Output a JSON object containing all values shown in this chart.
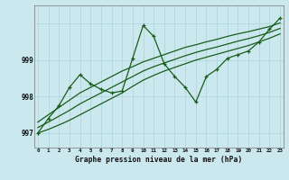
{
  "title": "Graphe pression niveau de la mer (hPa)",
  "bg_color": "#cce8ef",
  "grid_color": "#aad4dc",
  "line_color": "#1a5c1a",
  "x_hours": [
    0,
    1,
    2,
    3,
    4,
    5,
    6,
    7,
    8,
    9,
    10,
    11,
    12,
    13,
    14,
    15,
    16,
    17,
    18,
    19,
    20,
    21,
    22,
    23
  ],
  "pressure_main": [
    997.0,
    997.4,
    997.75,
    998.25,
    998.6,
    998.35,
    998.2,
    998.1,
    998.15,
    999.05,
    999.95,
    999.65,
    998.9,
    998.55,
    998.25,
    997.85,
    998.55,
    998.75,
    999.05,
    999.15,
    999.25,
    999.5,
    999.85,
    1000.15
  ],
  "trend_upper": [
    997.3,
    997.5,
    997.7,
    997.9,
    998.1,
    998.25,
    998.4,
    998.55,
    998.7,
    998.82,
    998.95,
    999.05,
    999.15,
    999.25,
    999.35,
    999.42,
    999.5,
    999.57,
    999.65,
    999.72,
    999.78,
    999.85,
    999.92,
    1000.02
  ],
  "trend_lower": [
    997.0,
    997.1,
    997.22,
    997.35,
    997.5,
    997.65,
    997.8,
    997.95,
    998.1,
    998.28,
    998.45,
    998.58,
    998.7,
    998.8,
    998.9,
    999.0,
    999.08,
    999.16,
    999.24,
    999.32,
    999.4,
    999.5,
    999.6,
    999.72
  ],
  "trend_mid": [
    997.15,
    997.3,
    997.46,
    997.62,
    997.8,
    997.95,
    998.1,
    998.25,
    998.4,
    998.55,
    998.7,
    998.82,
    998.92,
    999.02,
    999.12,
    999.21,
    999.29,
    999.36,
    999.44,
    999.52,
    999.59,
    999.67,
    999.76,
    999.87
  ],
  "yticks": [
    997,
    998,
    999
  ],
  "ylim": [
    996.6,
    1000.5
  ],
  "xlim": [
    -0.3,
    23.3
  ]
}
